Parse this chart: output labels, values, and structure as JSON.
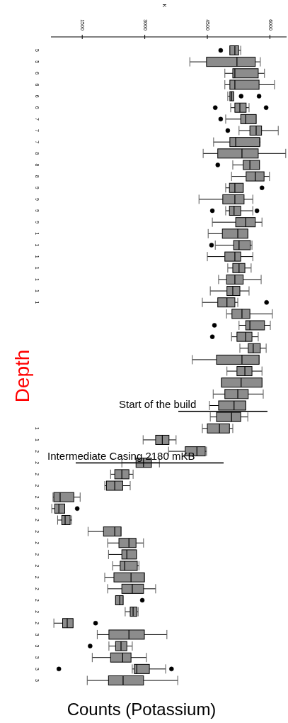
{
  "chart_data": {
    "type": "box",
    "orientation": "horizontal",
    "title": "K",
    "xlabel": "Counts (Potassium)",
    "ylabel": "Depth",
    "color": "#8c8c8c",
    "categories": [
      "5",
      "5",
      "6",
      "6",
      "6",
      "6",
      "7",
      "7",
      "7",
      "8",
      "8",
      "8",
      "9",
      "9",
      "9",
      "9",
      "1",
      "1",
      "1",
      "1",
      "1",
      "1",
      "1",
      null,
      null,
      null,
      null,
      null,
      null,
      null,
      null,
      null,
      null,
      "1",
      "1",
      "2",
      "2",
      "2",
      "2",
      "2",
      "2",
      "2",
      "2",
      "2",
      "2",
      "2",
      "2",
      "2",
      "2",
      "2",
      "2",
      "3",
      "3",
      "3",
      "3",
      "3"
    ],
    "xlim": [
      750,
      6400
    ],
    "xticks": [
      1500,
      3000,
      4500,
      6000
    ],
    "annotations": [
      "Start of the build",
      "Intermediate Casing 2180 mKB"
    ],
    "boxes": [
      {
        "low": 5040,
        "q1": 5040,
        "median": 5160,
        "q3": 5250,
        "high": 5300,
        "outliers": [
          4820
        ]
      },
      {
        "low": 4080,
        "q1": 4480,
        "median": 5210,
        "q3": 5650,
        "high": 5770
      },
      {
        "low": 4920,
        "q1": 5110,
        "median": 5160,
        "q3": 5720,
        "high": 5870
      },
      {
        "low": 4920,
        "q1": 5040,
        "median": 5160,
        "q3": 5740,
        "high": 6110
      },
      {
        "low": 4990,
        "q1": 5040,
        "median": 5080,
        "q3": 5130,
        "high": 5130,
        "outliers": [
          5310,
          5740
        ]
      },
      {
        "low": 5060,
        "q1": 5160,
        "median": 5280,
        "q3": 5430,
        "high": 5500,
        "outliers": [
          4690,
          5910
        ]
      },
      {
        "low": 4940,
        "q1": 5300,
        "median": 5420,
        "q3": 5670,
        "high": 5670,
        "outliers": [
          4820
        ]
      },
      {
        "low": 5260,
        "q1": 5520,
        "median": 5670,
        "q3": 5800,
        "high": 6200,
        "outliers": [
          4990
        ]
      },
      {
        "low": 4650,
        "q1": 5040,
        "median": 5180,
        "q3": 5750,
        "high": 5770
      },
      {
        "low": 4400,
        "q1": 4750,
        "median": 5330,
        "q3": 5720,
        "high": 6380
      },
      {
        "low": 5110,
        "q1": 5360,
        "median": 5520,
        "q3": 5750,
        "high": 5750,
        "outliers": [
          4750
        ]
      },
      {
        "low": 5080,
        "q1": 5430,
        "median": 5650,
        "q3": 5860,
        "high": 5990
      },
      {
        "low": 4940,
        "q1": 5030,
        "median": 5160,
        "q3": 5360,
        "high": 5360,
        "outliers": [
          5810
        ]
      },
      {
        "low": 4300,
        "q1": 4870,
        "median": 5160,
        "q3": 5380,
        "high": 5590
      },
      {
        "low": 4940,
        "q1": 5030,
        "median": 5140,
        "q3": 5300,
        "high": 5590,
        "outliers": [
          4620,
          5690
        ]
      },
      {
        "low": 4620,
        "q1": 5180,
        "median": 5420,
        "q3": 5650,
        "high": 5810
      },
      {
        "low": 4520,
        "q1": 4860,
        "median": 5230,
        "q3": 5470,
        "high": 5470
      },
      {
        "low": 4690,
        "q1": 5130,
        "median": 5260,
        "q3": 5530,
        "high": 5570,
        "outliers": [
          4600
        ]
      },
      {
        "low": 4500,
        "q1": 4920,
        "median": 5160,
        "q3": 5300,
        "high": 5590
      },
      {
        "low": 4990,
        "q1": 5110,
        "median": 5260,
        "q3": 5400,
        "high": 5550
      },
      {
        "low": 4770,
        "q1": 4960,
        "median": 5160,
        "q3": 5360,
        "high": 5790
      },
      {
        "low": 4570,
        "q1": 4970,
        "median": 5110,
        "q3": 5280,
        "high": 5500
      },
      {
        "low": 4380,
        "q1": 4750,
        "median": 4970,
        "q3": 5160,
        "high": 5230,
        "outliers": [
          5920
        ]
      },
      {
        "low": 4960,
        "q1": 5090,
        "median": 5330,
        "q3": 5520,
        "high": 6060
      },
      {
        "low": 5260,
        "q1": 5420,
        "median": 5520,
        "q3": 5870,
        "high": 6010,
        "outliers": [
          4670
        ]
      },
      {
        "low": 5080,
        "q1": 5210,
        "median": 5420,
        "q3": 5570,
        "high": 5720,
        "outliers": [
          4620
        ]
      },
      {
        "low": 5280,
        "q1": 5480,
        "median": 5600,
        "q3": 5770,
        "high": 5910
      },
      {
        "low": 4140,
        "q1": 4720,
        "median": 5330,
        "q3": 5740,
        "high": 5740
      },
      {
        "low": 4970,
        "q1": 5210,
        "median": 5400,
        "q3": 5570,
        "high": 5810
      },
      {
        "low": 4840,
        "q1": 4840,
        "median": 5310,
        "q3": 5810,
        "high": 5810
      },
      {
        "low": 4640,
        "q1": 4920,
        "median": 5230,
        "q3": 5480,
        "high": 5840
      },
      {
        "low": 4550,
        "q1": 4770,
        "median": 5140,
        "q3": 5420,
        "high": 5420
      },
      {
        "low": 4570,
        "q1": 4720,
        "median": 5080,
        "q3": 5300,
        "high": 5470
      },
      {
        "low": 4380,
        "q1": 4500,
        "median": 4790,
        "q3": 5030,
        "high": 5110
      },
      {
        "low": 2960,
        "q1": 3260,
        "median": 3420,
        "q3": 3580,
        "high": 3750
      },
      {
        "low": 3570,
        "q1": 3970,
        "median": 4250,
        "q3": 4450,
        "high": 4480
      },
      {
        "low": 2450,
        "q1": 2790,
        "median": 2970,
        "q3": 3160,
        "high": 3350
      },
      {
        "low": 2180,
        "q1": 2280,
        "median": 2450,
        "q3": 2620,
        "high": 2720
      },
      {
        "low": 2040,
        "q1": 2080,
        "median": 2280,
        "q3": 2470,
        "high": 2650
      },
      {
        "low": 800,
        "q1": 820,
        "median": 970,
        "q3": 1300,
        "high": 1450
      },
      {
        "low": 770,
        "q1": 840,
        "median": 940,
        "q3": 1080,
        "high": 1080,
        "outliers": [
          1380
        ]
      },
      {
        "low": 910,
        "q1": 1010,
        "median": 1090,
        "q3": 1210,
        "high": 1250
      },
      {
        "low": 1640,
        "q1": 2010,
        "median": 2280,
        "q3": 2430,
        "high": 2430
      },
      {
        "low": 2110,
        "q1": 2380,
        "median": 2620,
        "q3": 2790,
        "high": 2970
      },
      {
        "low": 2130,
        "q1": 2450,
        "median": 2570,
        "q3": 2800,
        "high": 2800
      },
      {
        "low": 2230,
        "q1": 2410,
        "median": 2520,
        "q3": 2820,
        "high": 2860
      },
      {
        "low": 2040,
        "q1": 2260,
        "median": 2670,
        "q3": 2990,
        "high": 2990
      },
      {
        "low": 2110,
        "q1": 2450,
        "median": 2700,
        "q3": 2970,
        "high": 3260
      },
      {
        "low": 2300,
        "q1": 2300,
        "median": 2400,
        "q3": 2480,
        "high": 2480,
        "outliers": [
          2940
        ]
      },
      {
        "low": 2530,
        "q1": 2650,
        "median": 2720,
        "q3": 2810,
        "high": 2840
      },
      {
        "low": 820,
        "q1": 1030,
        "median": 1140,
        "q3": 1280,
        "high": 1280,
        "outliers": [
          1820
        ]
      },
      {
        "low": 1860,
        "q1": 2140,
        "median": 2620,
        "q3": 2990,
        "high": 3530
      },
      {
        "low": 2140,
        "q1": 2300,
        "median": 2430,
        "q3": 2570,
        "high": 2700,
        "outliers": [
          1690
        ]
      },
      {
        "low": 1740,
        "q1": 2180,
        "median": 2470,
        "q3": 2670,
        "high": 3040
      },
      {
        "low": 2700,
        "q1": 2750,
        "median": 2810,
        "q3": 3110,
        "high": 3500,
        "outliers": [
          940,
          3640
        ]
      },
      {
        "low": 1620,
        "q1": 2130,
        "median": 2480,
        "q3": 2970,
        "high": 3790
      }
    ]
  }
}
